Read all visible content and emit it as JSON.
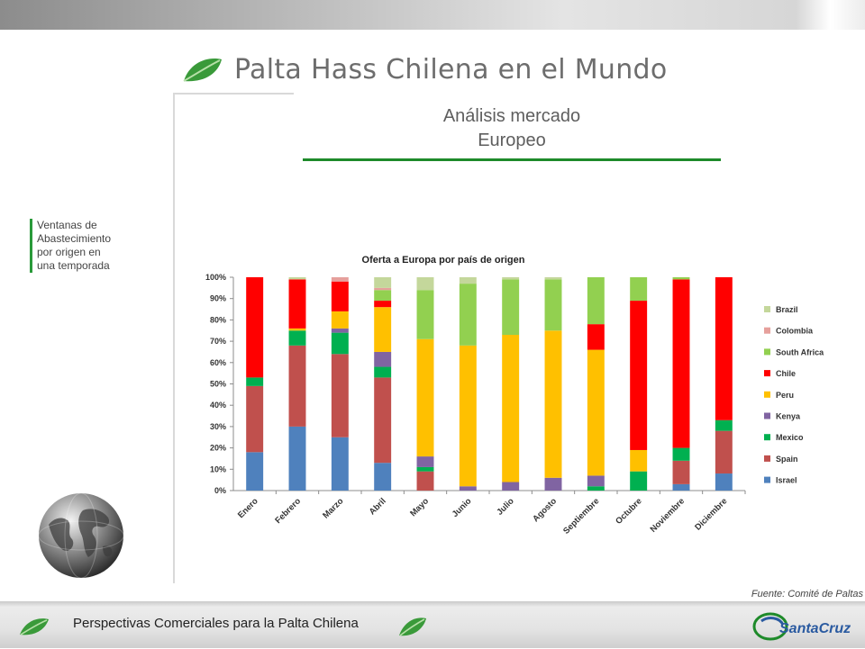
{
  "slide": {
    "title": "Palta Hass Chilena en el Mundo",
    "subtitle_line1": "Análisis mercado",
    "subtitle_line2": "Europeo",
    "side_note": "Ventanas de\nAbastecimiento\npor origen en\nuna temporada",
    "source": "Fuente: Comité de Paltas",
    "footer": "Perspectivas Comerciales para la Palta Chilena",
    "brand_text": "SantaCruz",
    "colors": {
      "accent_green": "#1e8a2a",
      "leaf_green": "#3a9a3a"
    }
  },
  "chart_data": {
    "type": "bar",
    "stacked": true,
    "title": "Oferta a Europa por país de origen",
    "categories": [
      "Enero",
      "Febrero",
      "Marzo",
      "Abril",
      "Mayo",
      "Junio",
      "Julio",
      "Agosto",
      "Septiembre",
      "Octubre",
      "Noviembre",
      "Diciembre"
    ],
    "ylim": [
      0,
      100
    ],
    "yticks": [
      "0%",
      "10%",
      "20%",
      "30%",
      "40%",
      "50%",
      "60%",
      "70%",
      "80%",
      "90%",
      "100%"
    ],
    "grid": false,
    "legend_position": "right",
    "series": [
      {
        "name": "Israel",
        "color": "#4f81bd",
        "values": [
          18,
          30,
          25,
          13,
          0,
          0,
          0,
          0,
          0,
          0,
          3,
          8
        ]
      },
      {
        "name": "Spain",
        "color": "#c0504d",
        "values": [
          31,
          38,
          39,
          40,
          9,
          0,
          0,
          0,
          0,
          0,
          11,
          20
        ]
      },
      {
        "name": "Mexico",
        "color": "#00b050",
        "values": [
          4,
          7,
          10,
          5,
          2,
          0,
          0,
          0,
          2,
          9,
          6,
          5
        ]
      },
      {
        "name": "Kenya",
        "color": "#8064a2",
        "values": [
          0,
          0,
          2,
          7,
          5,
          2,
          4,
          6,
          5,
          0,
          0,
          0
        ]
      },
      {
        "name": "Peru",
        "color": "#ffc000",
        "values": [
          0,
          1,
          8,
          21,
          55,
          66,
          69,
          69,
          59,
          10,
          0,
          0
        ]
      },
      {
        "name": "Chile",
        "color": "#ff0000",
        "values": [
          47,
          23,
          14,
          3,
          0,
          0,
          0,
          0,
          12,
          70,
          79,
          67
        ]
      },
      {
        "name": "South Africa",
        "color": "#92d050",
        "values": [
          0,
          0,
          0,
          5,
          23,
          29,
          26,
          24,
          22,
          11,
          1,
          0
        ]
      },
      {
        "name": "Colombia",
        "color": "#e6a09c",
        "values": [
          0,
          0,
          2,
          1,
          0,
          0,
          0,
          0,
          0,
          0,
          0,
          0
        ]
      },
      {
        "name": "Brazil",
        "color": "#c4d79b",
        "values": [
          0,
          1,
          0,
          5,
          6,
          3,
          1,
          1,
          0,
          0,
          0,
          0
        ]
      }
    ]
  }
}
